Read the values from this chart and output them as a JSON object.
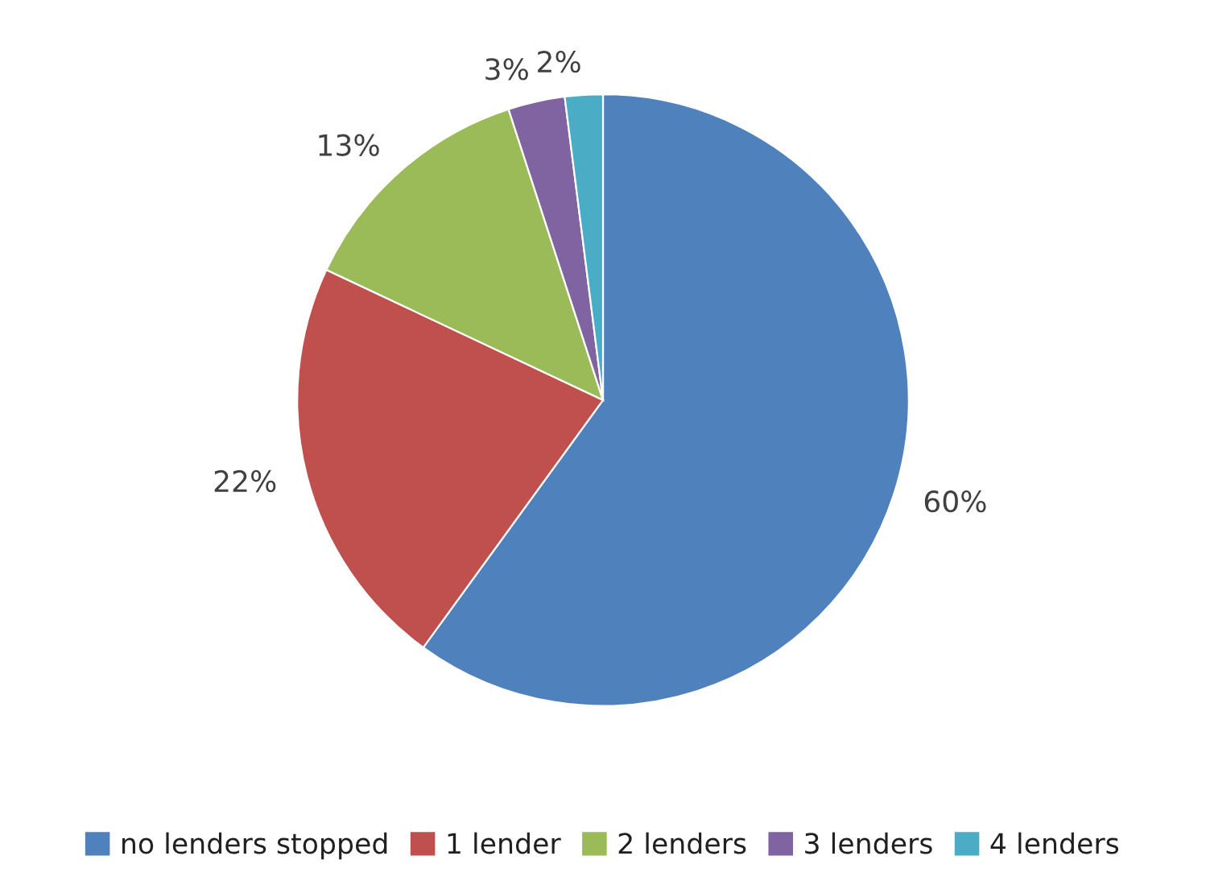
{
  "chart_data": {
    "type": "pie",
    "categories": [
      "no lenders stopped",
      "1 lender",
      "2 lenders",
      "3 lenders",
      "4 lenders"
    ],
    "values": [
      60,
      22,
      13,
      3,
      2
    ],
    "colors": [
      "#4f81bd",
      "#c0504d",
      "#9bbb59",
      "#8064a2",
      "#4bacc6"
    ],
    "value_labels": [
      "60%",
      "22%",
      "13%",
      "3%",
      "2%"
    ],
    "legend": "bottom"
  }
}
